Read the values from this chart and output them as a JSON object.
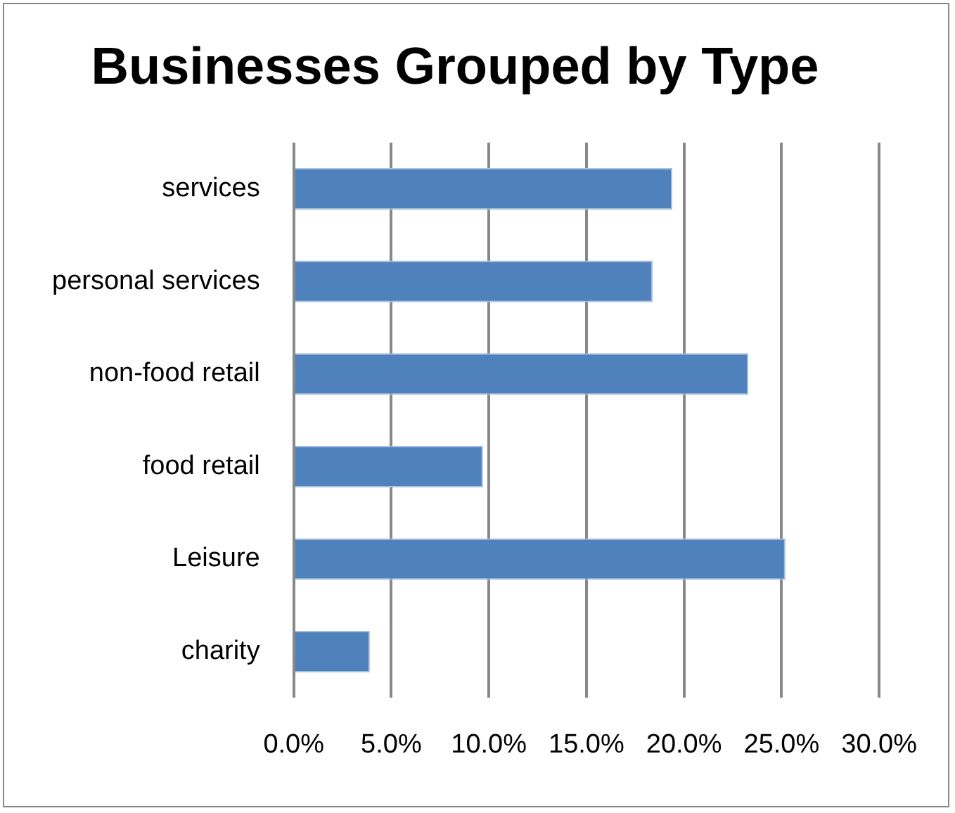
{
  "chart_data": {
    "type": "bar",
    "orientation": "horizontal",
    "title": "Businesses Grouped by Type",
    "categories": [
      "services",
      "personal services",
      "non-food retail",
      "food retail",
      "Leisure",
      "charity"
    ],
    "values": [
      19.4,
      18.4,
      23.3,
      9.7,
      25.2,
      3.9
    ],
    "color": "#4f81bd",
    "xlim": [
      0,
      30
    ],
    "xticks": [
      {
        "value": 0,
        "label": "0.0%"
      },
      {
        "value": 5,
        "label": "5.0%"
      },
      {
        "value": 10,
        "label": "10.0%"
      },
      {
        "value": 15,
        "label": "15.0%"
      },
      {
        "value": 20,
        "label": "20.0%"
      },
      {
        "value": 25,
        "label": "25.0%"
      },
      {
        "value": 30,
        "label": "30.0%"
      }
    ],
    "grid": "x",
    "legend": false
  }
}
